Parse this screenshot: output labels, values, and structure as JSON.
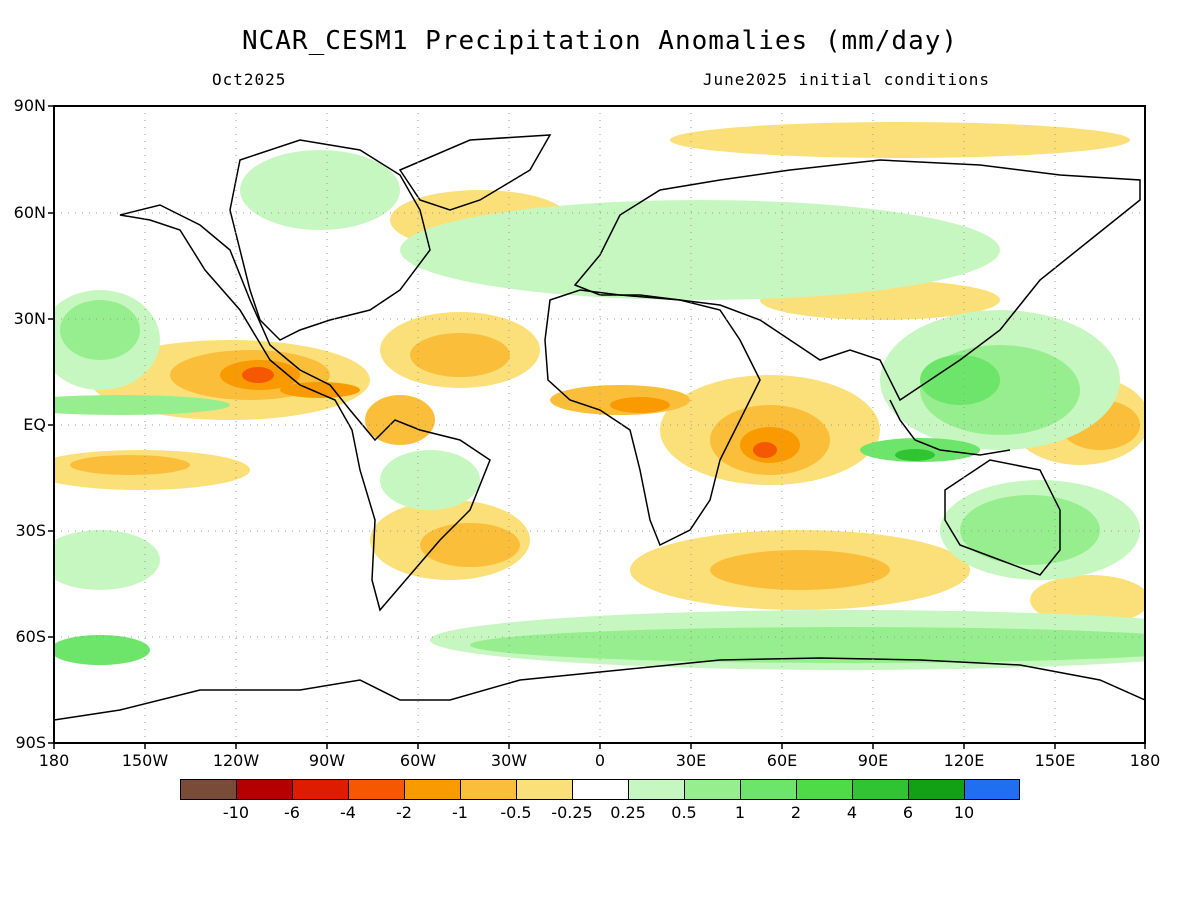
{
  "title": "NCAR_CESM1 Precipitation Anomalies (mm/day)",
  "subtitle_left": "Oct2025",
  "subtitle_right": "June2025 initial conditions",
  "lat_labels": [
    "90N",
    "60N",
    "30N",
    "EQ",
    "30S",
    "60S",
    "90S"
  ],
  "lon_labels": [
    "180",
    "150W",
    "120W",
    "90W",
    "60W",
    "30W",
    "0",
    "30E",
    "60E",
    "90E",
    "120E",
    "150E",
    "180"
  ],
  "colorbar": {
    "colors": [
      "#7b4b3a",
      "#b50000",
      "#dd1c00",
      "#f55800",
      "#f99a00",
      "#fbbe3b",
      "#fbe07a",
      "#ffffff",
      "#c7f7c0",
      "#97ee8e",
      "#6de46a",
      "#4ddc48",
      "#31c432",
      "#12a014",
      "#1f6ff0"
    ],
    "labels": [
      "-10",
      "-6",
      "-4",
      "-2",
      "-1",
      "-0.5",
      "-0.25",
      "0.25",
      "0.5",
      "1",
      "2",
      "4",
      "6",
      "10"
    ]
  },
  "legend_colors": {
    "dry_strong": "#f55800",
    "dry_moderate": "#f99a00",
    "dry_weak": "#fbe07a",
    "wet_weak": "#c7f7c0",
    "wet_moderate": "#6de46a",
    "wet_strong": "#31c432"
  }
}
